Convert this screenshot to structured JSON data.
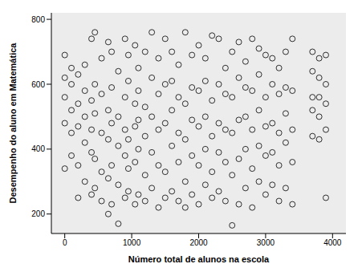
{
  "chart_data": {
    "type": "scatter",
    "x_label": "Número total de alunos na escola",
    "y_label": "Desempenho do aluno em Matemática",
    "color": "#000000",
    "marker": "circle",
    "xlim": [
      -200,
      4200
    ],
    "xticks": [
      0,
      1000,
      2000,
      3000,
      4000
    ],
    "ylim": [
      140,
      820
    ],
    "yticks": [
      200,
      400,
      600,
      800
    ],
    "x": [
      0,
      0,
      0,
      0,
      0,
      100,
      100,
      100,
      100,
      100,
      200,
      200,
      200,
      200,
      200,
      300,
      300,
      300,
      300,
      300,
      400,
      400,
      400,
      400,
      400,
      450,
      450,
      450,
      450,
      450,
      550,
      550,
      550,
      550,
      550,
      650,
      650,
      650,
      650,
      650,
      700,
      700,
      700,
      700,
      700,
      800,
      800,
      800,
      800,
      800,
      900,
      900,
      900,
      900,
      900,
      950,
      950,
      950,
      950,
      950,
      1050,
      1050,
      1050,
      1050,
      1050,
      1100,
      1100,
      1100,
      1100,
      1100,
      1200,
      1200,
      1200,
      1200,
      1200,
      1300,
      1300,
      1300,
      1300,
      1300,
      1400,
      1400,
      1400,
      1400,
      1400,
      1500,
      1500,
      1500,
      1500,
      1500,
      1600,
      1600,
      1600,
      1600,
      1600,
      1700,
      1700,
      1700,
      1700,
      1700,
      1800,
      1800,
      1800,
      1800,
      1800,
      1900,
      1900,
      1900,
      1900,
      1900,
      2000,
      2000,
      2000,
      2000,
      2000,
      2100,
      2100,
      2100,
      2100,
      2100,
      2200,
      2200,
      2200,
      2200,
      2200,
      2300,
      2300,
      2300,
      2300,
      2300,
      2400,
      2400,
      2400,
      2400,
      2400,
      2500,
      2500,
      2500,
      2500,
      2500,
      2600,
      2600,
      2600,
      2600,
      2600,
      2700,
      2700,
      2700,
      2700,
      2700,
      2800,
      2800,
      2800,
      2800,
      2800,
      2900,
      2900,
      2900,
      2900,
      2900,
      3000,
      3000,
      3000,
      3000,
      3000,
      3100,
      3100,
      3100,
      3100,
      3100,
      3200,
      3200,
      3200,
      3200,
      3200,
      3300,
      3300,
      3300,
      3300,
      3300,
      3400,
      3400,
      3400,
      3400,
      3400,
      3700,
      3700,
      3700,
      3700,
      3700,
      3800,
      3800,
      3800,
      3800,
      3800,
      3900,
      3900,
      3900,
      3900,
      3900
    ],
    "values": [
      340,
      480,
      560,
      620,
      690,
      380,
      450,
      520,
      600,
      650,
      250,
      350,
      470,
      540,
      630,
      300,
      420,
      500,
      580,
      660,
      260,
      390,
      460,
      550,
      740,
      280,
      370,
      510,
      600,
      760,
      240,
      330,
      450,
      570,
      680,
      200,
      310,
      430,
      520,
      730,
      230,
      350,
      480,
      590,
      700,
      170,
      290,
      410,
      500,
      640,
      250,
      380,
      460,
      560,
      740,
      270,
      340,
      430,
      610,
      690,
      230,
      360,
      470,
      540,
      720,
      260,
      400,
      490,
      580,
      650,
      240,
      320,
      440,
      530,
      700,
      280,
      390,
      500,
      620,
      760,
      220,
      350,
      460,
      570,
      680,
      250,
      330,
      480,
      600,
      740,
      270,
      410,
      520,
      610,
      700,
      240,
      360,
      450,
      560,
      660,
      220,
      300,
      430,
      540,
      760,
      260,
      380,
      490,
      590,
      690,
      230,
      350,
      470,
      580,
      720,
      290,
      400,
      500,
      610,
      680,
      250,
      330,
      440,
      550,
      750,
      270,
      390,
      480,
      600,
      740,
      240,
      360,
      460,
      570,
      650,
      165,
      320,
      450,
      560,
      700,
      230,
      370,
      490,
      620,
      730,
      280,
      400,
      500,
      590,
      670,
      220,
      340,
      460,
      580,
      740,
      300,
      410,
      520,
      630,
      710,
      260,
      380,
      470,
      560,
      690,
      290,
      390,
      480,
      600,
      680,
      240,
      350,
      450,
      570,
      650,
      280,
      420,
      510,
      590,
      700,
      230,
      360,
      460,
      580,
      740,
      440,
      520,
      560,
      640,
      700,
      430,
      500,
      560,
      620,
      680,
      250,
      460,
      540,
      600,
      690
    ]
  }
}
